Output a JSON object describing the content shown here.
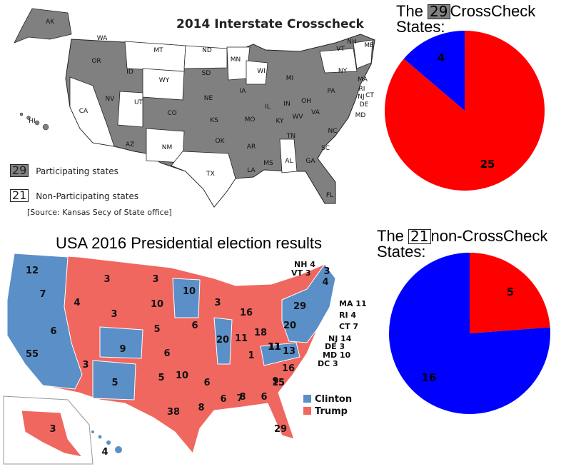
{
  "top_map": {
    "title": "2014 Interstate Crosscheck",
    "legend_participating_count": "29",
    "legend_participating_label": "Participating states",
    "legend_nonparticipating_count": "21",
    "legend_nonparticipating_label": "Non-Participating states",
    "source": "[Source: Kansas Secy of State office]",
    "colors": {
      "participating": "#808080",
      "nonparticipating": "#ffffff"
    },
    "state_labels": [
      "AK",
      "WA",
      "MT",
      "ND",
      "MN",
      "WI",
      "MI",
      "VT",
      "NH",
      "ME",
      "NY",
      "OR",
      "ID",
      "WY",
      "SD",
      "IA",
      "PA",
      "MA",
      "RI",
      "CT",
      "NJ",
      "DE",
      "MD",
      "NV",
      "UT",
      "NE",
      "IL",
      "IN",
      "OH",
      "WV",
      "VA",
      "KY",
      "CA",
      "CO",
      "KS",
      "MO",
      "TN",
      "NC",
      "HI",
      "AZ",
      "NM",
      "OK",
      "AR",
      "SC",
      "TX",
      "LA",
      "MS",
      "AL",
      "GA",
      "FL"
    ]
  },
  "pie_crosscheck": {
    "title_pre": "The",
    "title_count": "29",
    "title_post": "CrossCheck",
    "title_line2": "States:",
    "chart_data": {
      "type": "pie",
      "values": [
        4,
        25
      ],
      "labels": [
        "4",
        "25"
      ],
      "colors": [
        "#0000ff",
        "#ff0000"
      ]
    }
  },
  "bottom_map": {
    "title": "USA 2016 Presidential election results",
    "legend": [
      {
        "label": "Clinton",
        "color": "#5b8fc7"
      },
      {
        "label": "Trump",
        "color": "#f0675f"
      }
    ],
    "ev_labels": [
      "12",
      "7",
      "6",
      "55",
      "4",
      "3",
      "3",
      "3",
      "10",
      "10",
      "3",
      "5",
      "6",
      "9",
      "6",
      "20",
      "16",
      "11",
      "18",
      "20",
      "29",
      "3",
      "4",
      "1",
      "11",
      "5",
      "6",
      "10",
      "8",
      "7",
      "13",
      "38",
      "6",
      "8",
      "6",
      "9",
      "16",
      "15",
      "11",
      "5",
      "3",
      "4",
      "29",
      "3"
    ],
    "side_labels": [
      "NH 4",
      "VT 3",
      "MA 11",
      "RI 4",
      "CT 7",
      "NJ 14",
      "DE 3",
      "MD 10",
      "DC 3"
    ]
  },
  "pie_noncrosscheck": {
    "title_pre": "The",
    "title_count": "21",
    "title_post": "non-CrossCheck",
    "title_line2": "States:",
    "chart_data": {
      "type": "pie",
      "values": [
        5,
        16
      ],
      "labels": [
        "5",
        "16"
      ],
      "colors": [
        "#ff0000",
        "#0000ff"
      ]
    }
  }
}
